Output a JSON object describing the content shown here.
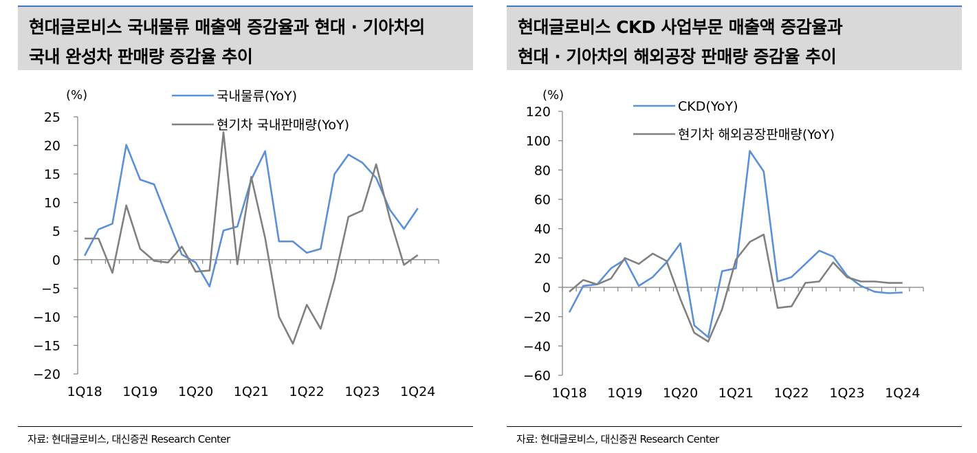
{
  "panels": [
    {
      "title_line1": "현대글로비스 국내물류 매출액 증감율과  현대 · 기아차의",
      "title_line2": "국내 완성차 판매량 증감율 추이",
      "source": "자료: 현대글로비스, 대신증권 Research Center"
    },
    {
      "title_line1": "현대글로비스 CKD 사업부문 매출액 증감율과",
      "title_line2": "현대 · 기아차의 해외공장 판매량 증감율 추이",
      "source": "자료: 현대글로비스, 대신증권 Research Center"
    }
  ],
  "colors": {
    "blue": "#5b8fd6",
    "gray": "#808080",
    "header_bg": "#d9d9d9",
    "header_line": "#3c78c8"
  },
  "chart_data": [
    {
      "type": "line",
      "unit_label": "(%)",
      "ylim": [
        -20,
        25
      ],
      "yticks": [
        25,
        20,
        15,
        10,
        5,
        0,
        -5,
        -10,
        -15,
        -20
      ],
      "ytick_labels": [
        "25",
        "20",
        "15",
        "10",
        "5",
        "0",
        "−5",
        "−10",
        "−15",
        "−20"
      ],
      "x_tick_labels": [
        "1Q18",
        "1Q19",
        "1Q20",
        "1Q21",
        "1Q22",
        "1Q23",
        "1Q24"
      ],
      "x_count": 26,
      "legend_position": "top-center",
      "series": [
        {
          "name": "국내물류(YoY)",
          "color": "#5b8fd6",
          "values": [
            0.7,
            5.3,
            6.3,
            20.1,
            14.0,
            13.2,
            7.0,
            0.9,
            -0.5,
            -4.7,
            5.1,
            5.8,
            14.0,
            19.0,
            3.2,
            3.2,
            1.2,
            1.9,
            15.0,
            18.4,
            17.0,
            14.3,
            8.7,
            5.4,
            9.0
          ]
        },
        {
          "name": "현기차 국내판매량(YoY)",
          "color": "#808080",
          "values": [
            3.7,
            3.7,
            -2.3,
            9.5,
            1.9,
            -0.2,
            -0.5,
            2.3,
            -2.1,
            -1.9,
            22.3,
            -0.8,
            14.5,
            3.8,
            -10.0,
            -14.7,
            -7.9,
            -12.1,
            -3.4,
            7.5,
            8.6,
            16.7,
            7.1,
            -0.9,
            0.8
          ]
        }
      ]
    },
    {
      "type": "line",
      "unit_label": "(%)",
      "ylim": [
        -60,
        120
      ],
      "yticks": [
        120,
        100,
        80,
        60,
        40,
        20,
        0,
        -20,
        -40,
        -60
      ],
      "ytick_labels": [
        "120",
        "100",
        "80",
        "60",
        "40",
        "20",
        "0",
        "−20",
        "−40",
        "−60"
      ],
      "x_tick_labels": [
        "1Q18",
        "1Q19",
        "1Q20",
        "1Q21",
        "1Q22",
        "1Q23",
        "1Q24"
      ],
      "x_count": 26,
      "legend_position": "top-center",
      "series": [
        {
          "name": "CKD(YoY)",
          "color": "#5b8fd6",
          "values": [
            -17,
            1,
            2,
            13,
            19,
            1,
            7,
            17,
            30,
            -26,
            -34,
            11,
            13,
            93,
            79,
            4,
            7,
            16,
            25,
            21,
            8,
            1,
            -3,
            -4,
            -3.5
          ]
        },
        {
          "name": "현기차 해외공장판매량(YoY)",
          "color": "#808080",
          "values": [
            -3,
            5,
            2,
            6,
            20,
            16,
            23,
            18,
            -8,
            -31,
            -37,
            -15,
            19,
            31,
            36,
            -14,
            -13,
            3,
            4,
            17,
            7,
            4,
            4,
            3,
            3
          ]
        }
      ]
    }
  ]
}
